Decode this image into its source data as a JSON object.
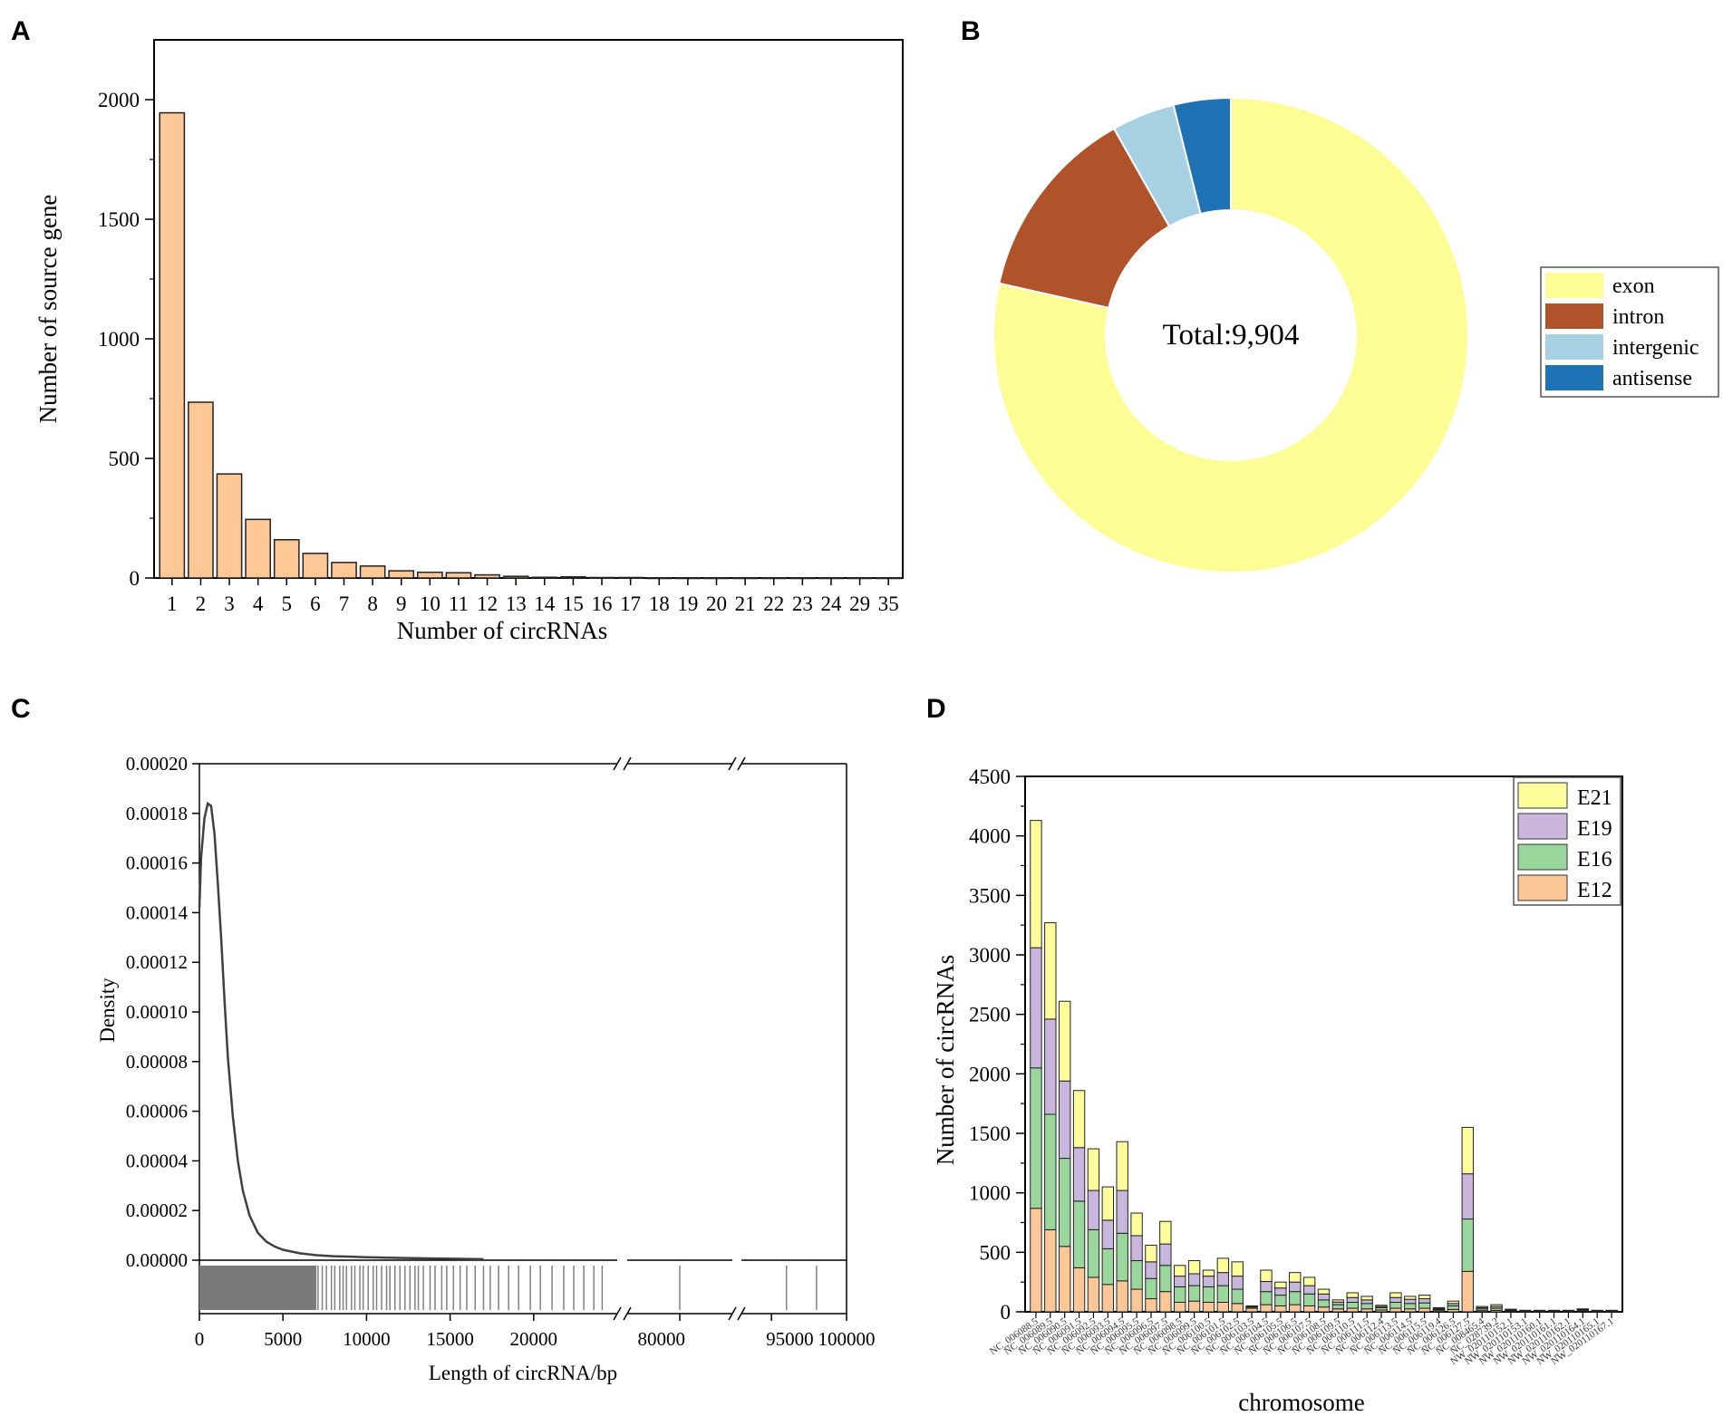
{
  "colors": {
    "bar_fill": "#fdc796",
    "exon": "#fdfd96",
    "intron": "#b0532a",
    "intergenic": "#a8d0e3",
    "antisense": "#1f73b4",
    "E21": "#fdfd9b",
    "E19": "#c8b6dd",
    "E16": "#9ad79c",
    "E12": "#fcc796"
  },
  "chart_data": [
    {
      "id": "A",
      "panel_label": "A",
      "type": "bar",
      "title": "",
      "xlabel": "Number of circRNAs",
      "ylabel": "Number of source gene",
      "categories": [
        "1",
        "2",
        "3",
        "4",
        "5",
        "6",
        "7",
        "8",
        "9",
        "10",
        "11",
        "12",
        "13",
        "14",
        "15",
        "16",
        "17",
        "18",
        "19",
        "20",
        "21",
        "22",
        "23",
        "24",
        "29",
        "35"
      ],
      "values": [
        1945,
        735,
        435,
        245,
        160,
        103,
        65,
        50,
        30,
        24,
        22,
        13,
        7,
        3,
        5,
        2,
        2,
        1,
        1,
        1,
        1,
        1,
        1,
        1,
        1,
        1
      ],
      "ylim": [
        0,
        2250
      ],
      "yticks": [
        "0",
        "500",
        "1000",
        "1500",
        "2000"
      ]
    },
    {
      "id": "B",
      "panel_label": "B",
      "type": "pie",
      "donut": true,
      "center_label": "Total:9,904",
      "labels": [
        "exon",
        "intron",
        "intergenic",
        "antisense"
      ],
      "values": [
        7775,
        1318,
        426,
        385
      ]
    },
    {
      "id": "C",
      "panel_label": "C",
      "type": "line",
      "xlabel": "Length of circRNA/bp",
      "ylabel": "Density",
      "yticks": [
        "0.00000",
        "0.00002",
        "0.00004",
        "0.00006",
        "0.00008",
        "0.00010",
        "0.00012",
        "0.00014",
        "0.00016",
        "0.00018",
        "0.00020"
      ],
      "ylim": [
        0,
        0.0002
      ],
      "x_segments": [
        [
          0,
          25000
        ],
        [
          78000,
          82000
        ],
        [
          93000,
          100000
        ]
      ],
      "xticks": [
        "0",
        "5000",
        "10000",
        "15000",
        "20000",
        "80000",
        "95000",
        "100000"
      ],
      "curve": {
        "x": [
          0,
          100,
          300,
          500,
          700,
          900,
          1100,
          1300,
          1500,
          1700,
          2000,
          2300,
          2600,
          3000,
          3500,
          4000,
          4500,
          5000,
          6000,
          7000,
          8000,
          9000,
          10000,
          12000,
          14000,
          16000,
          17000
        ],
        "y": [
          0.000142,
          0.000162,
          0.000178,
          0.000184,
          0.000183,
          0.000172,
          0.000152,
          0.00013,
          0.000105,
          8.2e-05,
          5.8e-05,
          4e-05,
          2.8e-05,
          1.8e-05,
          1.1e-05,
          7.5e-06,
          5.5e-06,
          4.2e-06,
          2.8e-06,
          2e-06,
          1.6e-06,
          1.4e-06,
          1.2e-06,
          9e-07,
          7e-07,
          5e-07,
          4e-07
        ]
      },
      "rug": {
        "dense_to": 7000,
        "x": [
          7100,
          7350,
          7600,
          7900,
          8100,
          8400,
          8600,
          8800,
          9100,
          9300,
          9600,
          9800,
          10100,
          10400,
          10600,
          10900,
          11200,
          11400,
          11700,
          12000,
          12300,
          12600,
          12900,
          13100,
          13400,
          13800,
          14100,
          14500,
          14800,
          15200,
          15600,
          16000,
          16500,
          17000,
          17400,
          17900,
          18500,
          19100,
          19800,
          20400,
          21100,
          21800,
          22400,
          23000,
          23600,
          24100,
          80000,
          96000,
          98000
        ]
      }
    },
    {
      "id": "D",
      "panel_label": "D",
      "type": "bar",
      "stacked": true,
      "xlabel": "chromosome",
      "ylabel": "Number of circRNAs",
      "ylim": [
        0,
        4500
      ],
      "yticks": [
        "0",
        "500",
        "1000",
        "1500",
        "2000",
        "2500",
        "3000",
        "3500",
        "4000",
        "4500"
      ],
      "categories": [
        "NC_006088.5",
        "NC_006089.5",
        "NC_006090.5",
        "NC_006091.5",
        "NC_006092.5",
        "NC_006093.5",
        "NC_006094.5",
        "NC_006095.5",
        "NC_006096.5",
        "NC_006097.5",
        "NC_006098.5",
        "NC_006099.5",
        "NC_006100.5",
        "NC_006101.5",
        "NC_006102.5",
        "NC_006103.5",
        "NC_006104.5",
        "NC_006105.5",
        "NC_006106.5",
        "NC_006107.5",
        "NC_006108.5",
        "NC_006109.5",
        "NC_006110.5",
        "NC_006111.5",
        "NC_006112.4",
        "NC_006113.5",
        "NC_006114.5",
        "NC_006115.5",
        "NC_006119.4",
        "NC_006126.5",
        "NC_006127.5",
        "NC_008465.4",
        "NC_028739.2",
        "NW_020110152.1",
        "NW_020110153.1",
        "NW_020110160.1",
        "NW_020110161.1",
        "NW_020110162.1",
        "NW_020110164.1",
        "NW_020110165.1",
        "NW_020110167.1"
      ],
      "series": [
        {
          "name": "E12",
          "values": [
            870,
            690,
            550,
            370,
            290,
            230,
            260,
            190,
            110,
            170,
            80,
            90,
            80,
            80,
            70,
            30,
            60,
            50,
            60,
            50,
            40,
            25,
            30,
            25,
            15,
            30,
            25,
            30,
            10,
            20,
            340,
            10,
            12,
            6,
            3,
            3,
            3,
            3,
            6,
            3,
            3
          ]
        },
        {
          "name": "E16",
          "values": [
            1180,
            970,
            740,
            560,
            400,
            300,
            400,
            240,
            170,
            220,
            130,
            130,
            130,
            140,
            120,
            10,
            110,
            90,
            110,
            100,
            60,
            35,
            50,
            45,
            20,
            50,
            45,
            45,
            10,
            30,
            440,
            15,
            18,
            6,
            4,
            4,
            4,
            4,
            8,
            4,
            4
          ]
        },
        {
          "name": "E19",
          "values": [
            1010,
            800,
            650,
            450,
            330,
            240,
            360,
            210,
            140,
            180,
            90,
            100,
            90,
            110,
            110,
            5,
            85,
            60,
            80,
            70,
            50,
            22,
            40,
            30,
            10,
            40,
            35,
            35,
            8,
            20,
            380,
            10,
            15,
            5,
            3,
            3,
            3,
            3,
            6,
            3,
            3
          ]
        },
        {
          "name": "E21",
          "values": [
            1070,
            810,
            670,
            480,
            350,
            280,
            410,
            190,
            140,
            190,
            90,
            110,
            50,
            120,
            120,
            5,
            95,
            50,
            80,
            70,
            40,
            18,
            40,
            30,
            10,
            40,
            25,
            30,
            7,
            20,
            390,
            10,
            15,
            5,
            3,
            3,
            3,
            3,
            5,
            3,
            3
          ]
        }
      ],
      "legend": [
        "E21",
        "E19",
        "E16",
        "E12"
      ]
    }
  ]
}
